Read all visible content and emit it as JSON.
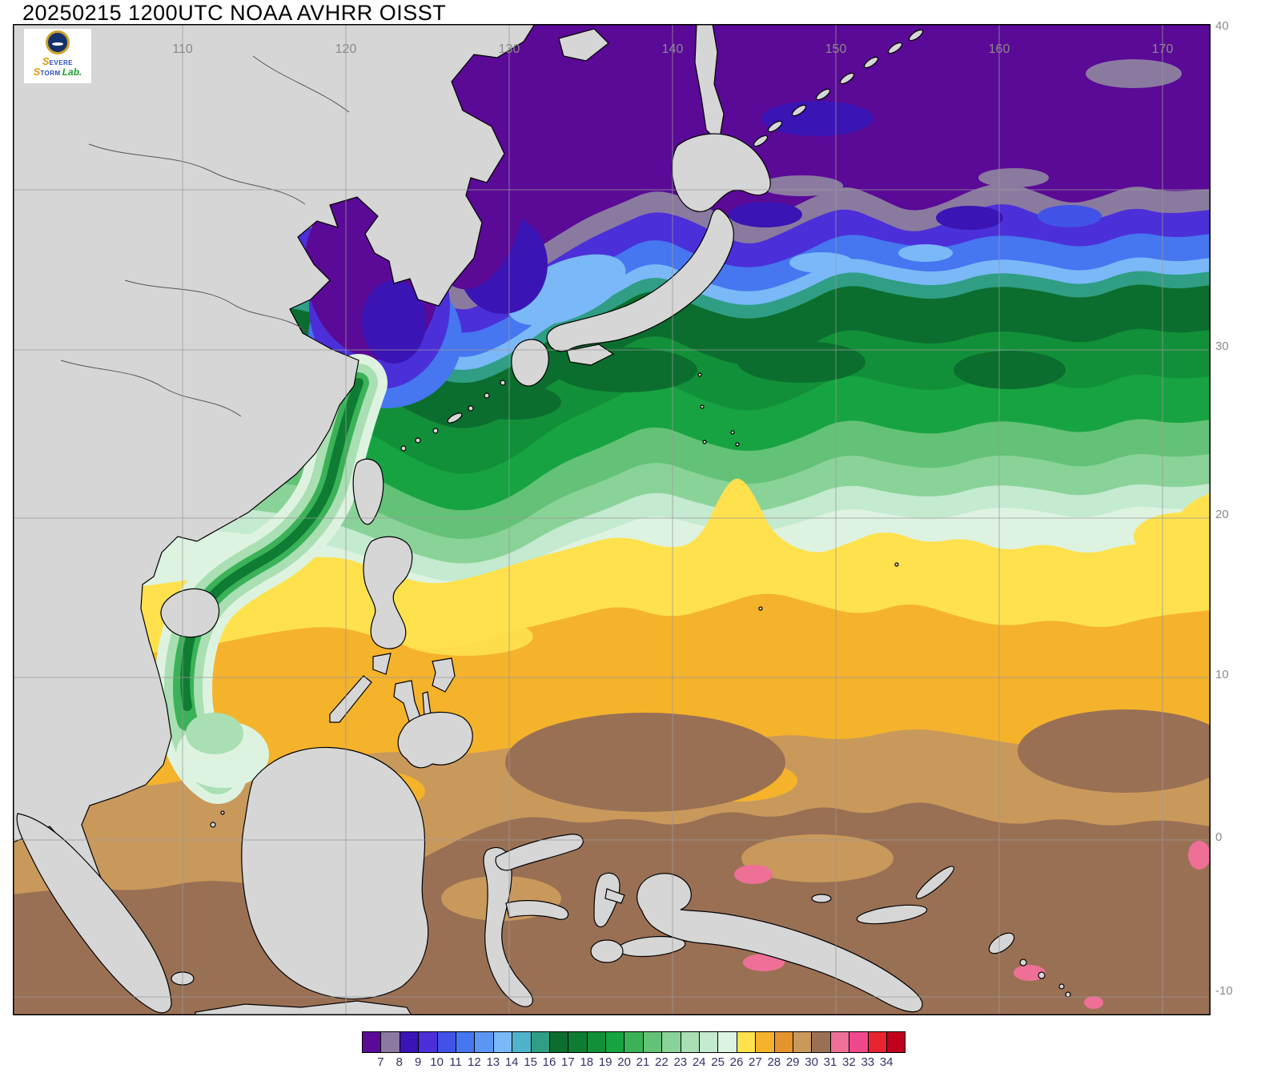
{
  "title": "20250215 1200UTC NOAA AVHRR OISST",
  "logo": {
    "s1": "S",
    "evere": "EVERE",
    "s2": "S",
    "torm": "TORM",
    "lab": "Lab."
  },
  "map": {
    "land_color": "#d6d6d6",
    "grid_color": "#999999",
    "label_color": "#8a8a8a",
    "lon_ticks": [
      "110",
      "120",
      "130",
      "140",
      "150",
      "160",
      "170"
    ],
    "lat_ticks": [
      "40",
      "30",
      "20",
      "10",
      "0",
      "-10"
    ]
  },
  "colorbar": {
    "label_color": "#333366",
    "labels": [
      "7",
      "8",
      "9",
      "10",
      "11",
      "12",
      "13",
      "14",
      "15",
      "16",
      "17",
      "18",
      "19",
      "20",
      "21",
      "22",
      "23",
      "24",
      "25",
      "26",
      "27",
      "28",
      "29",
      "30",
      "31",
      "32",
      "33",
      "34"
    ],
    "colors": [
      "#5a0a96",
      "#8a7aa0",
      "#3a14b4",
      "#4b2fd8",
      "#4153e6",
      "#4676f0",
      "#5c96f5",
      "#7ab8f8",
      "#4fb3c9",
      "#2f9e84",
      "#0b6e2e",
      "#0e7d33",
      "#129039",
      "#17a341",
      "#3bb258",
      "#63c277",
      "#8ad398",
      "#a9dfb3",
      "#c4ead0",
      "#ddf3e0",
      "#ffe14e",
      "#f5b32b",
      "#e3942c",
      "#c9995c",
      "#9a7054",
      "#ee7096",
      "#f0488c",
      "#e82430",
      "#c0001c"
    ]
  }
}
